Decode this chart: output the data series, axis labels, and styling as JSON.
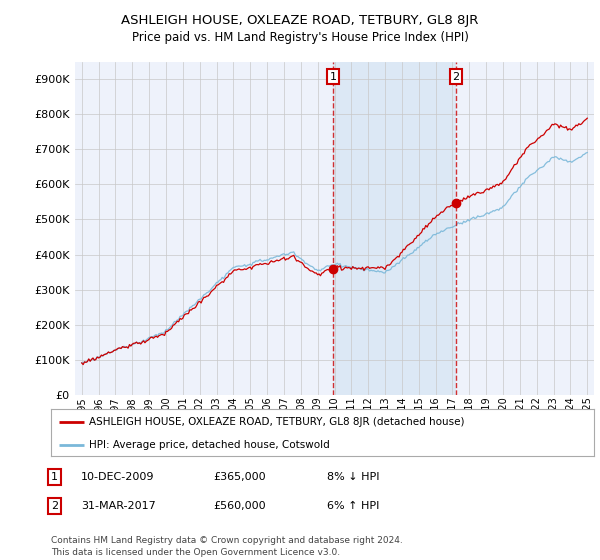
{
  "title": "ASHLEIGH HOUSE, OXLEAZE ROAD, TETBURY, GL8 8JR",
  "subtitle": "Price paid vs. HM Land Registry's House Price Index (HPI)",
  "hpi_label": "HPI: Average price, detached house, Cotswold",
  "property_label": "ASHLEIGH HOUSE, OXLEAZE ROAD, TETBURY, GL8 8JR (detached house)",
  "footer": "Contains HM Land Registry data © Crown copyright and database right 2024.\nThis data is licensed under the Open Government Licence v3.0.",
  "hpi_color": "#7ab8d9",
  "property_color": "#cc0000",
  "marker1_year": 2009.917,
  "marker1_price": 365000,
  "marker1_date": "10-DEC-2009",
  "marker1_text": "8% ↓ HPI",
  "marker2_year": 2017.208,
  "marker2_price": 560000,
  "marker2_date": "31-MAR-2017",
  "marker2_text": "6% ↑ HPI",
  "ylim": [
    0,
    950000
  ],
  "yticks": [
    0,
    100000,
    200000,
    300000,
    400000,
    500000,
    600000,
    700000,
    800000,
    900000
  ],
  "background_color": "#ffffff",
  "plot_bg_color": "#eef2fb",
  "shaded_bg_color": "#dce8f5",
  "grid_color": "#c8c8c8"
}
